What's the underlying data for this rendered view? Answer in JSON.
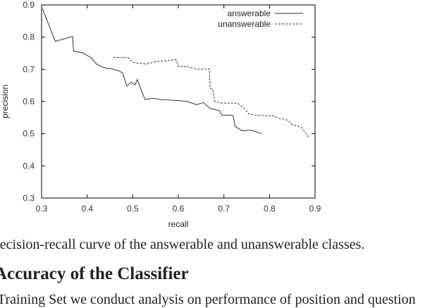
{
  "chart_data": {
    "type": "line",
    "xlabel": "recall",
    "ylabel": "precision",
    "xlim": [
      0.3,
      0.9
    ],
    "ylim": [
      0.3,
      0.9
    ],
    "xticks": [
      "0.3",
      "0.4",
      "0.5",
      "0.6",
      "0.7",
      "0.8",
      "0.9"
    ],
    "yticks": [
      "0.3",
      "0.4",
      "0.5",
      "0.6",
      "0.7",
      "0.8",
      "0.9"
    ],
    "legend_position": "top-right",
    "series": [
      {
        "name": "answerable",
        "style": "solid",
        "x": [
          0.302,
          0.33,
          0.368,
          0.37,
          0.39,
          0.41,
          0.42,
          0.43,
          0.445,
          0.45,
          0.47,
          0.478,
          0.487,
          0.497,
          0.505,
          0.51,
          0.52,
          0.527,
          0.545,
          0.56,
          0.6,
          0.62,
          0.64,
          0.655,
          0.67,
          0.69,
          0.695,
          0.71,
          0.72,
          0.725,
          0.74,
          0.76,
          0.783
        ],
        "y": [
          0.888,
          0.787,
          0.802,
          0.757,
          0.751,
          0.735,
          0.717,
          0.709,
          0.702,
          0.703,
          0.695,
          0.688,
          0.648,
          0.66,
          0.652,
          0.668,
          0.63,
          0.606,
          0.61,
          0.606,
          0.603,
          0.6,
          0.59,
          0.597,
          0.578,
          0.572,
          0.558,
          0.558,
          0.556,
          0.522,
          0.509,
          0.511,
          0.5
        ]
      },
      {
        "name": "unanswerable",
        "style": "dashed",
        "x": [
          0.458,
          0.49,
          0.495,
          0.505,
          0.53,
          0.55,
          0.58,
          0.595,
          0.6,
          0.62,
          0.64,
          0.668,
          0.67,
          0.675,
          0.68,
          0.695,
          0.71,
          0.73,
          0.745,
          0.755,
          0.77,
          0.79,
          0.81,
          0.82,
          0.84,
          0.85,
          0.87,
          0.88,
          0.887
        ],
        "y": [
          0.737,
          0.736,
          0.728,
          0.72,
          0.716,
          0.724,
          0.727,
          0.73,
          0.708,
          0.709,
          0.7,
          0.701,
          0.64,
          0.64,
          0.6,
          0.595,
          0.595,
          0.595,
          0.578,
          0.561,
          0.558,
          0.556,
          0.555,
          0.548,
          0.542,
          0.528,
          0.52,
          0.501,
          0.488
        ]
      }
    ]
  },
  "text": {
    "caption": "Precision-recall curve of the answerable and unanswerable classes.",
    "heading": "Accuracy of the Classifier",
    "body": "Training Set we conduct analysis on performance of position and question"
  }
}
